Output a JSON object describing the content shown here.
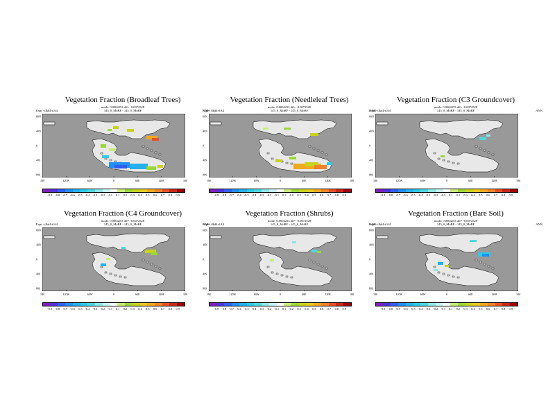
{
  "meta_line": "mode: 0.0004253 dff= -0.0072528",
  "expt_label": "Expt - tlkd4-tlA4",
  "ann_label": "ANN",
  "run_label": "145_0_MoBF - 145_0_MoBF",
  "lat_labels": [
    "60N",
    "40N",
    "0",
    "40S",
    "80S"
  ],
  "lon_labels": [
    "180",
    "120W",
    "60W",
    "0",
    "60E",
    "120E",
    "180"
  ],
  "colorbar": {
    "ticks": [
      "-0.9",
      "-0.8",
      "-0.7",
      "-0.6",
      "-0.5",
      "-0.4",
      "-0.3",
      "-0.2",
      "-0.1",
      "0.1",
      "0.2",
      "0.3",
      "0.4",
      "0.5",
      "0.6",
      "0.7",
      "0.8",
      "0.9"
    ],
    "colors": [
      "#7d1fbf",
      "#4d34d9",
      "#2f5ff2",
      "#1f8ff2",
      "#25b0ec",
      "#2ec9e6",
      "#4fd6dd",
      "#8fe6e6",
      "#c8f4f4",
      "#ffffff",
      "#c8ec78",
      "#9dd63b",
      "#c8d21e",
      "#e6c81e",
      "#f0a81e",
      "#f08228",
      "#e65028",
      "#c82814",
      "#a00000"
    ]
  },
  "colors": {
    "ocean": "#999999",
    "land": "#e8e8e8"
  },
  "panels": [
    {
      "title": "Vegetation Fraction (Broadleaf Trees)"
    },
    {
      "title": "Vegetation Fraction (Needleleaf Trees)"
    },
    {
      "title": "Vegetation Fraction (C3 Groundcover)"
    },
    {
      "title": "Vegetation Fraction (C4 Groundcover)"
    },
    {
      "title": "Vegetation Fraction (Shrubs)"
    },
    {
      "title": "Vegetation Fraction (Bare Soil)"
    }
  ]
}
